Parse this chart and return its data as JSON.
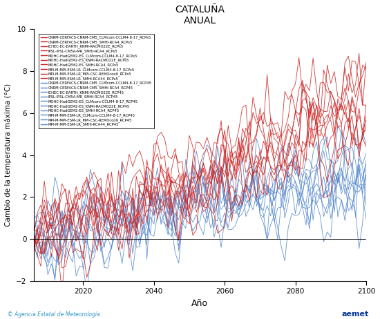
{
  "title": "CATALUÑA",
  "subtitle": "ANUAL",
  "xlabel": "Año",
  "ylabel": "Cambio de la temperatura máxima (°C)",
  "xlim": [
    2006,
    2100
  ],
  "ylim": [
    -2,
    10
  ],
  "yticks": [
    -2,
    0,
    2,
    4,
    6,
    8,
    10
  ],
  "xticks": [
    2020,
    2040,
    2060,
    2080,
    2100
  ],
  "rcp85_color": "#CC2222",
  "rcp45_color": "#5588CC",
  "x_start": 2006,
  "x_end": 2100,
  "legend_rcp85": [
    "CNRM-CERFACS-CNRM-CM5_CLMcom-CCLM4-8-17_RCPs5",
    "CNRM-CERFACS-CNRM-CM5_SMHI-RCA4_RCPs5",
    "ICHEC-EC-EARTH_KNMI-RACMO22E_RCPs5",
    "IPSL-IPSL-CM5A-MR_SMHI-RCA4_RCPs5",
    "MOHC-HadGEM2-ES_CLMcom-CCLM4-8-17_RCPs5",
    "MOHC-HadGEM2-ES_KNMI-RACMO22E_RCPs5",
    "MOHC-HadGEM2-ES_SMHI-RCA4_RCPs5",
    "MPI-M-MPI-ESM-LR_CLMcom-CCLM4-8-17_RCPs5",
    "MPI-M-MPI-ESM-LR_MPI-CSC-REMOcoo9_RCPs5",
    "MPI-M-MPI-ESM-LR_SMHI-RCA44_RCPs5"
  ],
  "legend_rcp45": [
    "CNRM-CERFACS-CNRM-CM5_CLMcom-CCLM4-8-17_RCP45",
    "CNRM-CERFACS-CNRM-CM5_SMHI-RCA4_RCP45",
    "ICHEC-EC-EARTH_KNMI-RACMO22E_RCP45",
    "IPSL-IPSL-CM5A-MR_SMHI-RCA4_RCP45",
    "MOHC-HadGEM2-ES_CLMcom-CCLM4-8-17_RCP45",
    "MOHC-HadGEM2-ES_KNMI-RACMO22E_RCP45",
    "MOHC-HadGEM2-ES_SMHI-RCA4_RCP45",
    "MPI-M-MPI-ESM-LR_CLMcom-CCLM4-8-17_RCP45",
    "MPI-M-MPI-ESM-LR_MPI-CSC-REMOcoo9_RCP45",
    "MPI-M-MPI-ESM-LR_SMHI-RCA44_RCP45"
  ],
  "footer_left": "© Agencia Estatal de Meteorología",
  "footer_right": "aemet",
  "fig_width": 5.5,
  "fig_height": 4.62,
  "dpi": 100
}
